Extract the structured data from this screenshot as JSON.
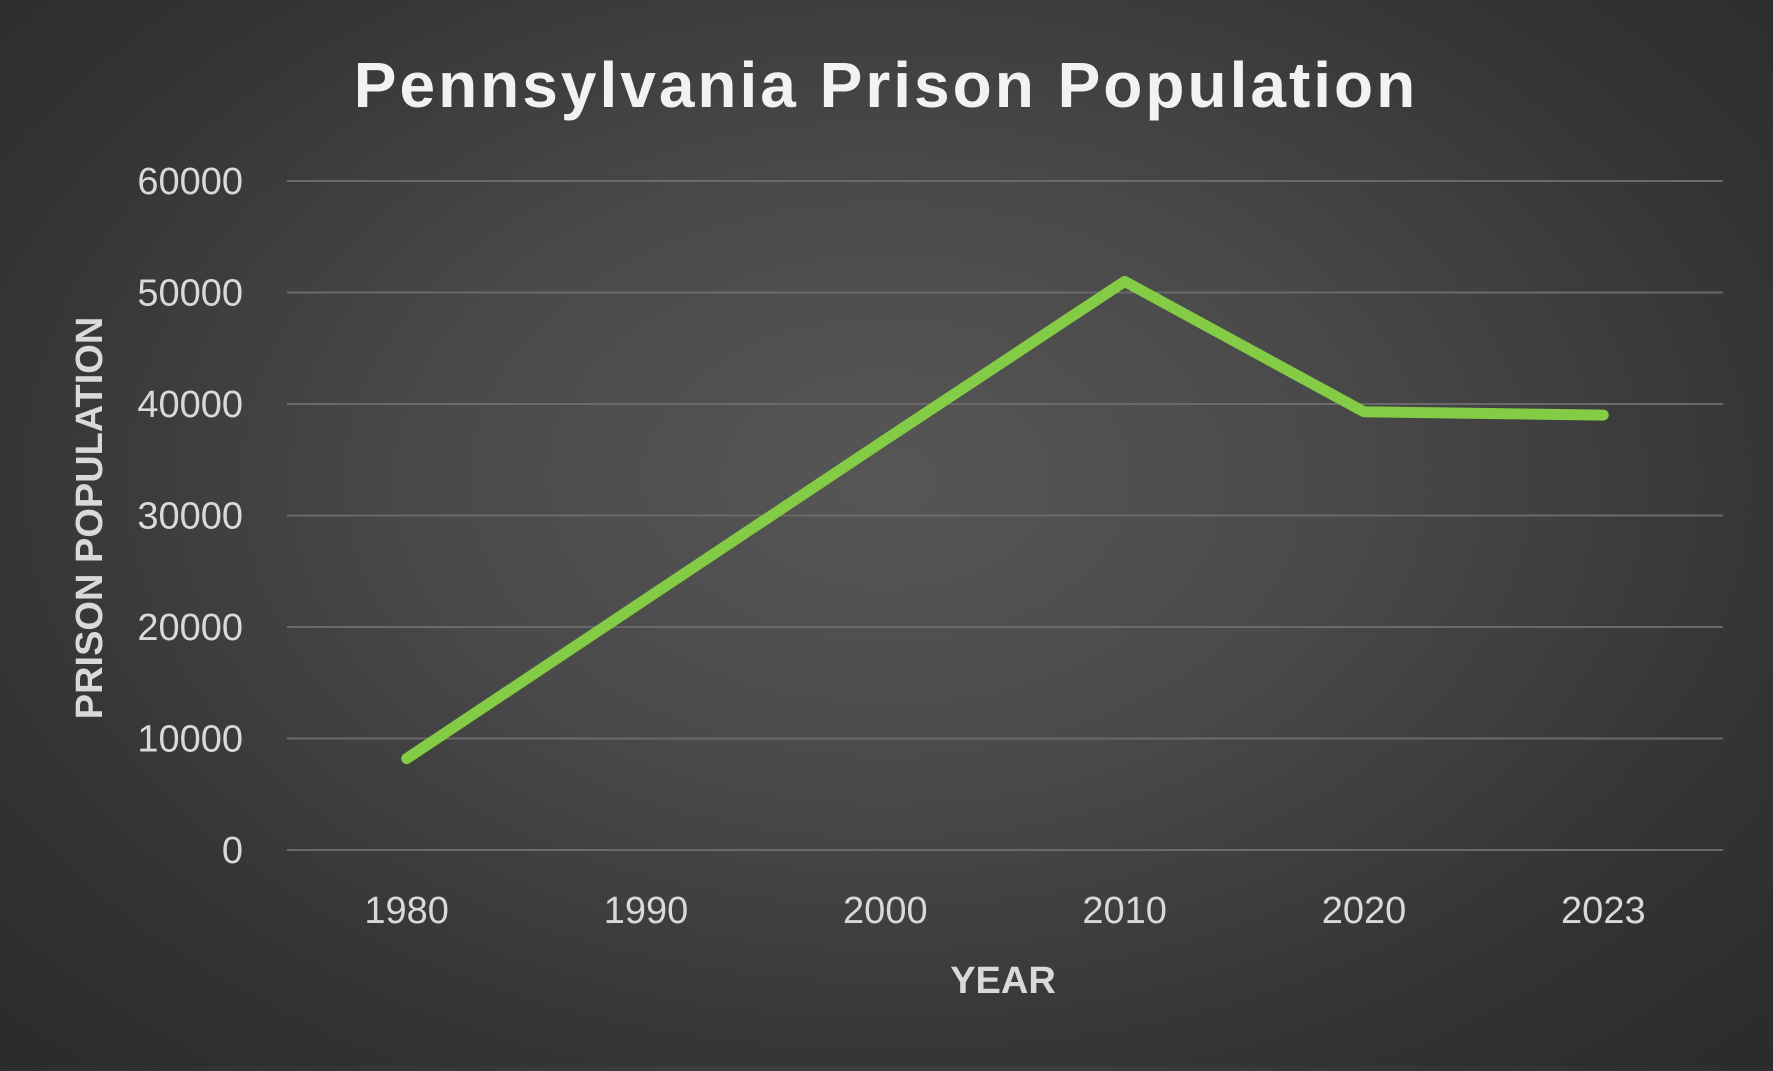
{
  "chart_data": {
    "type": "line",
    "title": "Pennsylvania Prison Population",
    "xlabel": "YEAR",
    "ylabel": "PRISON POPULATION",
    "categories": [
      "1980",
      "1990",
      "2000",
      "2010",
      "2020",
      "2023"
    ],
    "series": [
      {
        "values": [
          8200,
          22500,
          36800,
          51000,
          39300,
          39000
        ]
      }
    ],
    "ylim": [
      0,
      60000
    ],
    "yticks": [
      0,
      10000,
      20000,
      30000,
      40000,
      50000,
      60000
    ],
    "ytick_labels": [
      "0",
      "10000",
      "20000",
      "30000",
      "40000",
      "50000",
      "60000"
    ],
    "grid": true,
    "legend": "none",
    "colors": {
      "line": "#84cc45",
      "background": "#404040"
    }
  }
}
